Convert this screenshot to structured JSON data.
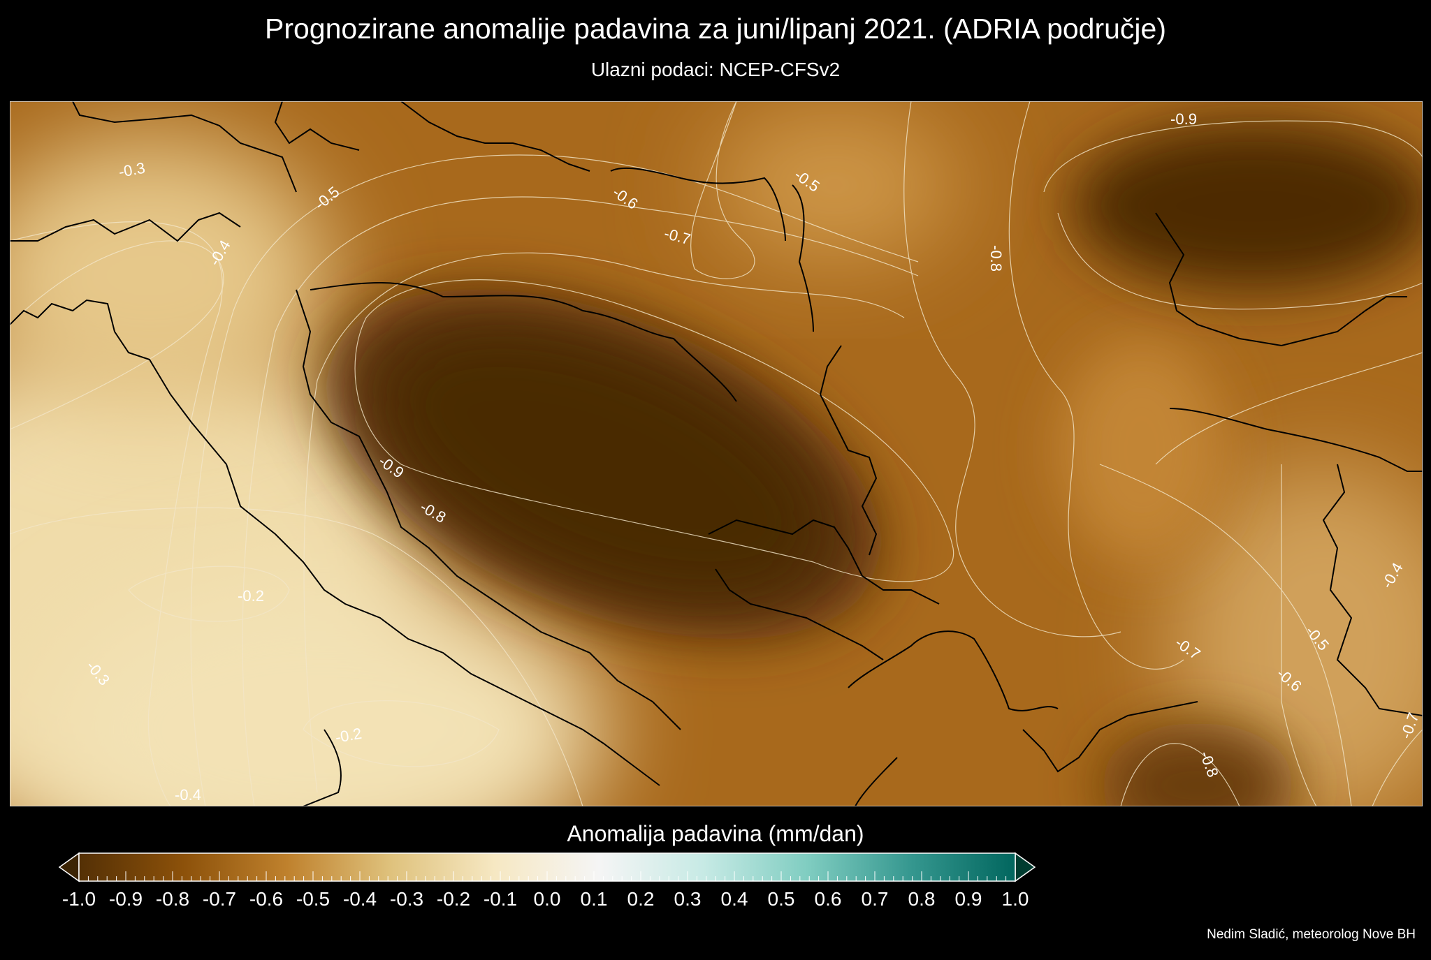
{
  "title": "Prognozirane anomalije padavina za juni/lipanj 2021. (ADRIA područje)",
  "subtitle": "Ulazni podaci: NCEP-CFSv2",
  "map": {
    "variable": "precipitation anomaly",
    "contour_labels": [
      "-0.3",
      "-0.5",
      "-0.4",
      "-0.6",
      "-0.5",
      "-0.7",
      "-0.9",
      "-0.8",
      "-0.9",
      "-0.8",
      "-0.2",
      "-0.3",
      "-0.2",
      "-0.4",
      "-0.7",
      "-0.6",
      "-0.5",
      "-0.4",
      "-0.7",
      "-0.8"
    ]
  },
  "colorbar": {
    "title": "Anomalija padavina (mm/dan)",
    "range": [
      -1.0,
      1.0
    ],
    "ticks": [
      "-1.0",
      "-0.9",
      "-0.8",
      "-0.7",
      "-0.6",
      "-0.5",
      "-0.4",
      "-0.3",
      "-0.2",
      "-0.1",
      "0.0",
      "0.1",
      "0.2",
      "0.3",
      "0.4",
      "0.5",
      "0.6",
      "0.7",
      "0.8",
      "0.9",
      "1.0"
    ],
    "colors": [
      "#3c2404",
      "#543005",
      "#8c510a",
      "#bf812d",
      "#dfc27d",
      "#f6e8c3",
      "#f5f5f5",
      "#c7eae5",
      "#80cdc1",
      "#35978f",
      "#01665e",
      "#003c30"
    ],
    "extend": "both"
  },
  "credit": "Nedim Sladić, meteorolog Nove BH"
}
